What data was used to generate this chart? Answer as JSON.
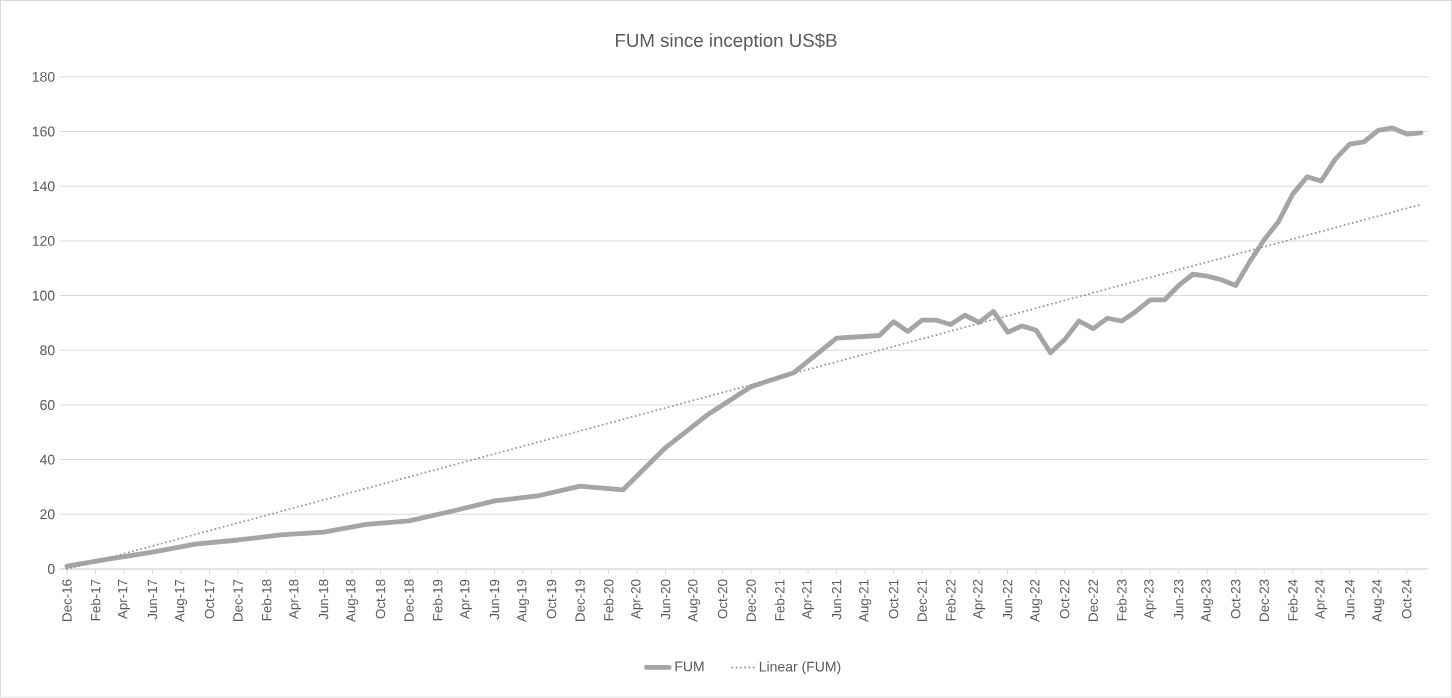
{
  "chart_data": {
    "type": "line",
    "title": "FUM since inception US$B",
    "xlim": [
      "2016-11-16",
      "2024-11-16"
    ],
    "ylim": [
      0,
      180
    ],
    "yticks": [
      0,
      20,
      40,
      60,
      80,
      100,
      120,
      140,
      160,
      180
    ],
    "xticks": [
      {
        "value": "2016-12",
        "label": "Dec-16"
      },
      {
        "value": "2017-02",
        "label": "Feb-17"
      },
      {
        "value": "2017-04",
        "label": "Apr-17"
      },
      {
        "value": "2017-06",
        "label": "Jun-17"
      },
      {
        "value": "2017-08",
        "label": "Aug-17"
      },
      {
        "value": "2017-10",
        "label": "Oct-17"
      },
      {
        "value": "2017-12",
        "label": "Dec-17"
      },
      {
        "value": "2018-02",
        "label": "Feb-18"
      },
      {
        "value": "2018-04",
        "label": "Apr-18"
      },
      {
        "value": "2018-06",
        "label": "Jun-18"
      },
      {
        "value": "2018-08",
        "label": "Aug-18"
      },
      {
        "value": "2018-10",
        "label": "Oct-18"
      },
      {
        "value": "2018-12",
        "label": "Dec-18"
      },
      {
        "value": "2019-02",
        "label": "Feb-19"
      },
      {
        "value": "2019-04",
        "label": "Apr-19"
      },
      {
        "value": "2019-06",
        "label": "Jun-19"
      },
      {
        "value": "2019-08",
        "label": "Aug-19"
      },
      {
        "value": "2019-10",
        "label": "Oct-19"
      },
      {
        "value": "2019-12",
        "label": "Dec-19"
      },
      {
        "value": "2020-02",
        "label": "Feb-20"
      },
      {
        "value": "2020-04",
        "label": "Apr-20"
      },
      {
        "value": "2020-06",
        "label": "Jun-20"
      },
      {
        "value": "2020-08",
        "label": "Aug-20"
      },
      {
        "value": "2020-10",
        "label": "Oct-20"
      },
      {
        "value": "2020-12",
        "label": "Dec-20"
      },
      {
        "value": "2021-02",
        "label": "Feb-21"
      },
      {
        "value": "2021-04",
        "label": "Apr-21"
      },
      {
        "value": "2021-06",
        "label": "Jun-21"
      },
      {
        "value": "2021-08",
        "label": "Aug-21"
      },
      {
        "value": "2021-10",
        "label": "Oct-21"
      },
      {
        "value": "2021-12",
        "label": "Dec-21"
      },
      {
        "value": "2022-02",
        "label": "Feb-22"
      },
      {
        "value": "2022-04",
        "label": "Apr-22"
      },
      {
        "value": "2022-06",
        "label": "Jun-22"
      },
      {
        "value": "2022-08",
        "label": "Aug-22"
      },
      {
        "value": "2022-10",
        "label": "Oct-22"
      },
      {
        "value": "2022-12",
        "label": "Dec-22"
      },
      {
        "value": "2023-02",
        "label": "Feb-23"
      },
      {
        "value": "2023-04",
        "label": "Apr-23"
      },
      {
        "value": "2023-06",
        "label": "Jun-23"
      },
      {
        "value": "2023-08",
        "label": "Aug-23"
      },
      {
        "value": "2023-10",
        "label": "Oct-23"
      },
      {
        "value": "2023-12",
        "label": "Dec-23"
      },
      {
        "value": "2024-02",
        "label": "Feb-24"
      },
      {
        "value": "2024-04",
        "label": "Apr-24"
      },
      {
        "value": "2024-06",
        "label": "Jun-24"
      },
      {
        "value": "2024-08",
        "label": "Aug-24"
      },
      {
        "value": "2024-10",
        "label": "Oct-24"
      }
    ],
    "grid": "y",
    "legend": "bottom",
    "marker": "none",
    "series": [
      {
        "name": "FUM",
        "color": "#a5a5a5",
        "line_style": "solid",
        "x": [
          "2016-12",
          "2017-03",
          "2017-06",
          "2017-09",
          "2017-12",
          "2018-03",
          "2018-06",
          "2018-09",
          "2018-12",
          "2019-03",
          "2019-06",
          "2019-09",
          "2019-12",
          "2020-03",
          "2020-06",
          "2020-09",
          "2020-12",
          "2021-03",
          "2021-06",
          "2021-09",
          "2021-10",
          "2021-11",
          "2021-12",
          "2022-01",
          "2022-02",
          "2022-03",
          "2022-04",
          "2022-05",
          "2022-06",
          "2022-07",
          "2022-08",
          "2022-09",
          "2022-10",
          "2022-11",
          "2022-12",
          "2023-01",
          "2023-02",
          "2023-03",
          "2023-04",
          "2023-05",
          "2023-06",
          "2023-07",
          "2023-08",
          "2023-09",
          "2023-10",
          "2023-11",
          "2023-12",
          "2024-01",
          "2024-02",
          "2024-03",
          "2024-04",
          "2024-05",
          "2024-06",
          "2024-07",
          "2024-08",
          "2024-09",
          "2024-10",
          "2024-11"
        ],
        "values": [
          1,
          3.7,
          6.2,
          9.1,
          10.6,
          12.5,
          13.5,
          16.3,
          17.6,
          21.1,
          24.9,
          26.7,
          30.3,
          28.9,
          44.4,
          56.6,
          66.7,
          71.8,
          84.4,
          85.4,
          90.4,
          86.9,
          91.0,
          91.0,
          89.4,
          92.8,
          90.2,
          94.2,
          86.6,
          88.9,
          87.3,
          79.1,
          83.9,
          90.7,
          87.9,
          91.7,
          90.7,
          94.2,
          98.4,
          98.4,
          103.7,
          107.8,
          107.1,
          105.8,
          103.7,
          112.5,
          120.4,
          127.0,
          137.1,
          143.4,
          141.9,
          150.0,
          155.4,
          156.2,
          160.4,
          161.3,
          159.1,
          159.5
        ]
      },
      {
        "name": "Linear (FUM)",
        "color": "#999999",
        "line_style": "dotted",
        "x": [
          "2016-12",
          "2024-11"
        ],
        "values": [
          0,
          133.3
        ]
      }
    ]
  }
}
